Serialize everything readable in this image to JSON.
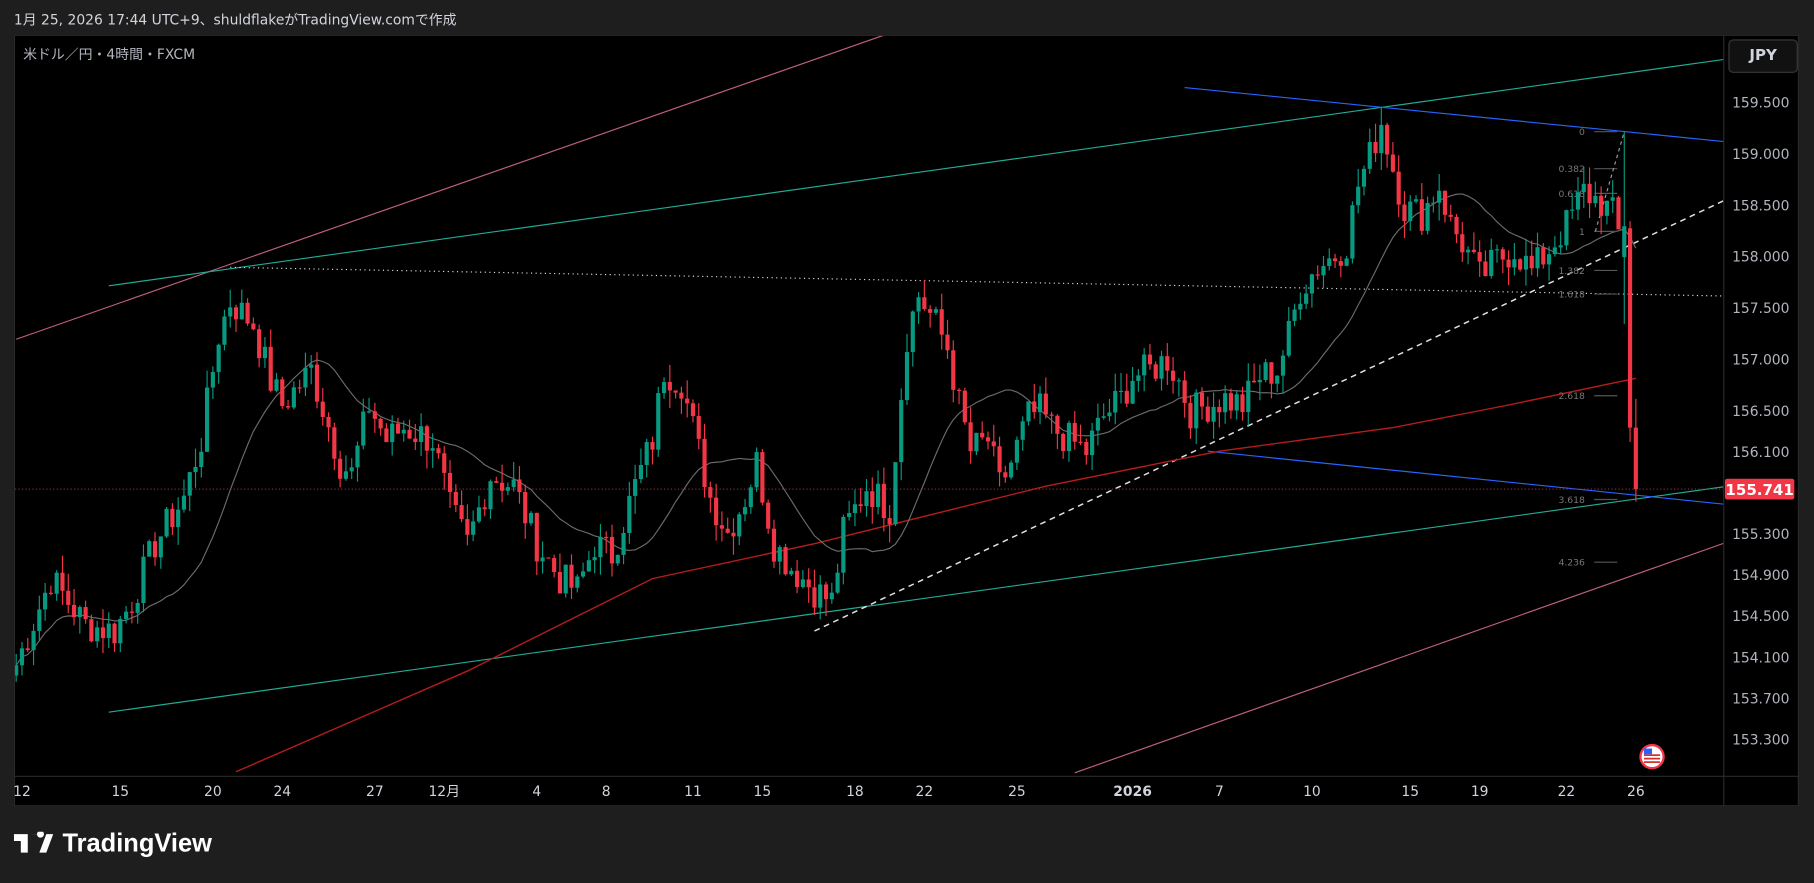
{
  "header": {
    "caption": "1月 25, 2026 17:44 UTC+9、shuldflakeがTradingView.comで作成"
  },
  "symbol": {
    "label": "米ドル／円・4時間・FXCM"
  },
  "currency_button": "JPY",
  "brand": "TradingView",
  "colors": {
    "up": "#089981",
    "down": "#f23645",
    "ma_fast": "#6b6b6b",
    "ma_slow": "#b71c1c",
    "pink": "#c2607a",
    "teal": "#22ab94",
    "blue": "#2962ff",
    "last_price": "#f23645"
  },
  "chart_data": {
    "type": "candlestick",
    "timeframe": "4h",
    "ylim": [
      153.1,
      160.2
    ],
    "price_ticks": [
      "159.500",
      "159.000",
      "158.500",
      "158.000",
      "157.500",
      "157.000",
      "156.500",
      "156.100",
      "155.300",
      "154.900",
      "154.500",
      "154.100",
      "153.700",
      "153.300"
    ],
    "last_price": "155.741",
    "x_ticks": [
      {
        "label": "12",
        "bar": 1
      },
      {
        "label": "15",
        "bar": 18
      },
      {
        "label": "20",
        "bar": 34
      },
      {
        "label": "24",
        "bar": 46
      },
      {
        "label": "27",
        "bar": 62
      },
      {
        "label": "12月",
        "bar": 74
      },
      {
        "label": "4",
        "bar": 90
      },
      {
        "label": "8",
        "bar": 102
      },
      {
        "label": "11",
        "bar": 117
      },
      {
        "label": "15",
        "bar": 129
      },
      {
        "label": "18",
        "bar": 145
      },
      {
        "label": "22",
        "bar": 157
      },
      {
        "label": "25",
        "bar": 173
      },
      {
        "label": "2026",
        "bar": 193,
        "bold": true
      },
      {
        "label": "7",
        "bar": 208
      },
      {
        "label": "10",
        "bar": 224
      },
      {
        "label": "15",
        "bar": 241
      },
      {
        "label": "19",
        "bar": 253
      },
      {
        "label": "22",
        "bar": 268
      },
      {
        "label": "26",
        "bar": 280
      }
    ],
    "close_path": [
      [
        0,
        154.03
      ],
      [
        6,
        154.87
      ],
      [
        12,
        154.42
      ],
      [
        17,
        154.36
      ],
      [
        20,
        154.65
      ],
      [
        24,
        155.21
      ],
      [
        29,
        155.66
      ],
      [
        32,
        156.22
      ],
      [
        35,
        157.24
      ],
      [
        37,
        157.57
      ],
      [
        41,
        157.35
      ],
      [
        44,
        156.79
      ],
      [
        46,
        156.56
      ],
      [
        51,
        156.9
      ],
      [
        56,
        156.0
      ],
      [
        58,
        155.89
      ],
      [
        61,
        156.56
      ],
      [
        64,
        156.22
      ],
      [
        67,
        156.34
      ],
      [
        72,
        156.22
      ],
      [
        75,
        155.55
      ],
      [
        78,
        155.21
      ],
      [
        82,
        155.88
      ],
      [
        86,
        155.77
      ],
      [
        90,
        155.21
      ],
      [
        94,
        154.87
      ],
      [
        97,
        154.76
      ],
      [
        100,
        155.21
      ],
      [
        103,
        155.1
      ],
      [
        107,
        155.77
      ],
      [
        110,
        156.22
      ],
      [
        112,
        156.9
      ],
      [
        115,
        156.79
      ],
      [
        118,
        156.11
      ],
      [
        120,
        155.66
      ],
      [
        123,
        155.32
      ],
      [
        126,
        155.66
      ],
      [
        128,
        156.0
      ],
      [
        131,
        155.21
      ],
      [
        134,
        154.98
      ],
      [
        138,
        154.76
      ],
      [
        141,
        154.65
      ],
      [
        143,
        155.32
      ],
      [
        147,
        155.77
      ],
      [
        151,
        155.55
      ],
      [
        154,
        157.24
      ],
      [
        156,
        157.63
      ],
      [
        159,
        157.35
      ],
      [
        161,
        157.12
      ],
      [
        163,
        156.56
      ],
      [
        165,
        156.11
      ],
      [
        168,
        156.22
      ],
      [
        170,
        155.77
      ],
      [
        172,
        156.0
      ],
      [
        175,
        156.45
      ],
      [
        177,
        156.5
      ],
      [
        179,
        156.34
      ],
      [
        182,
        156.22
      ],
      [
        185,
        156.11
      ],
      [
        188,
        156.45
      ],
      [
        191,
        156.62
      ],
      [
        193,
        156.84
      ],
      [
        196,
        156.9
      ],
      [
        199,
        157.01
      ],
      [
        201,
        156.79
      ],
      [
        203,
        156.5
      ],
      [
        206,
        156.56
      ],
      [
        209,
        156.62
      ],
      [
        212,
        156.56
      ],
      [
        215,
        156.84
      ],
      [
        218,
        156.9
      ],
      [
        220,
        157.24
      ],
      [
        222,
        157.69
      ],
      [
        225,
        157.91
      ],
      [
        228,
        158.02
      ],
      [
        230,
        158.14
      ],
      [
        232,
        158.7
      ],
      [
        234,
        158.98
      ],
      [
        236,
        159.32
      ],
      [
        238,
        158.87
      ],
      [
        240,
        158.48
      ],
      [
        243,
        158.42
      ],
      [
        246,
        158.7
      ],
      [
        248,
        158.31
      ],
      [
        250,
        158.14
      ],
      [
        253,
        157.8
      ],
      [
        256,
        157.97
      ],
      [
        259,
        158.08
      ],
      [
        262,
        157.86
      ],
      [
        265,
        158.08
      ],
      [
        268,
        158.31
      ],
      [
        271,
        158.64
      ],
      [
        274,
        158.53
      ],
      [
        276,
        158.42
      ],
      [
        277,
        158.27
      ]
    ],
    "last_bars": [
      {
        "bar": 278,
        "o": 158.0,
        "h": 159.22,
        "l": 157.35,
        "c": 158.3
      },
      {
        "bar": 279,
        "o": 158.28,
        "h": 158.35,
        "l": 156.2,
        "c": 156.34
      },
      {
        "bar": 280,
        "o": 156.34,
        "h": 156.62,
        "l": 155.62,
        "c": 155.741
      }
    ],
    "ma_slow": [
      [
        38,
        152.99
      ],
      [
        78,
        153.97
      ],
      [
        110,
        154.87
      ],
      [
        138,
        155.21
      ],
      [
        178,
        155.77
      ],
      [
        208,
        156.11
      ],
      [
        238,
        156.34
      ],
      [
        258,
        156.56
      ],
      [
        280,
        156.82
      ]
    ],
    "ma_fast_period": 20,
    "drawings": [
      {
        "kind": "trend",
        "color": "pink",
        "p": [
          [
            0,
            157.2
          ],
          [
            150,
            160.16
          ]
        ]
      },
      {
        "kind": "trend",
        "color": "pink",
        "p": [
          [
            183,
            152.98
          ],
          [
            296,
            155.23
          ]
        ]
      },
      {
        "kind": "trend",
        "color": "teal",
        "p": [
          [
            16,
            157.72
          ],
          [
            296,
            159.93
          ]
        ]
      },
      {
        "kind": "trend",
        "color": "teal",
        "p": [
          [
            16,
            153.57
          ],
          [
            296,
            155.77
          ]
        ]
      },
      {
        "kind": "trend",
        "color": "blue",
        "p": [
          [
            202,
            159.65
          ],
          [
            296,
            159.12
          ]
        ]
      },
      {
        "kind": "trend",
        "color": "blue",
        "p": [
          [
            206,
            156.11
          ],
          [
            296,
            155.59
          ]
        ]
      },
      {
        "kind": "dotted",
        "color": "white",
        "p": [
          [
            37,
            157.9
          ],
          [
            296,
            157.62
          ]
        ]
      },
      {
        "kind": "dashed",
        "color": "white",
        "p": [
          [
            138,
            154.36
          ],
          [
            296,
            158.57
          ]
        ]
      }
    ],
    "fib_levels": [
      {
        "label": "0",
        "price": 159.22
      },
      {
        "label": "0.382",
        "price": 158.86
      },
      {
        "label": "0.618",
        "price": 158.62
      },
      {
        "label": "1",
        "price": 158.25
      },
      {
        "label": "1.382",
        "price": 157.87
      },
      {
        "label": "1.618",
        "price": 157.64
      },
      {
        "label": "2.618",
        "price": 156.65
      },
      {
        "label": "3.618",
        "price": 155.64
      },
      {
        "label": "4.236",
        "price": 155.03
      }
    ]
  }
}
